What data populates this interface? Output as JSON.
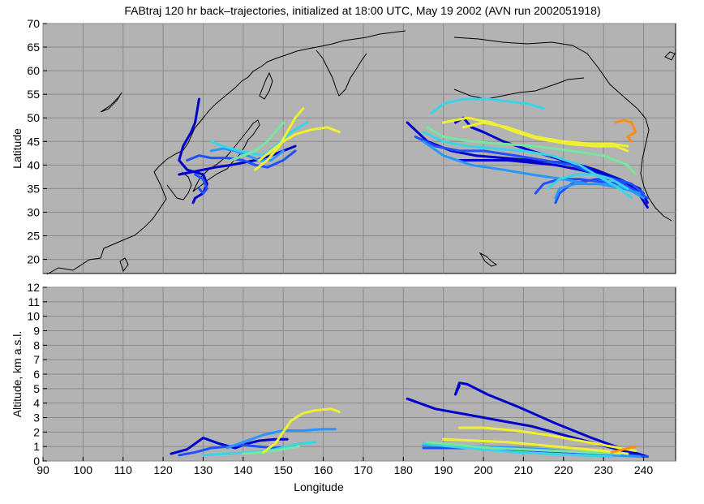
{
  "chart_data": [
    {
      "type": "line",
      "panel": "map",
      "title": "FABtraj 120 hr back–trajectories, initialized at 18:00 UTC, May 19 2002 (AVN run 2002051918)",
      "xlabel": "",
      "ylabel": "Latitude",
      "xlim": [
        90,
        248
      ],
      "ylim": [
        17,
        70
      ],
      "xticks": [],
      "yticks": [
        20,
        25,
        30,
        35,
        40,
        45,
        50,
        55,
        60,
        65,
        70
      ],
      "grid": true,
      "series": [
        {
          "color": "#0000cc",
          "x": [
            129,
            128,
            127,
            125,
            124,
            126,
            128,
            130,
            131,
            130,
            128,
            127.5
          ],
          "y": [
            54,
            49,
            47,
            44,
            41,
            39,
            38.5,
            38,
            36,
            34,
            33,
            32
          ]
        },
        {
          "color": "#0000cc",
          "x": [
            124,
            127,
            130,
            133,
            137,
            140,
            143,
            147,
            150,
            153
          ],
          "y": [
            38,
            38.5,
            39,
            39.5,
            40,
            40.5,
            41,
            42,
            43,
            44
          ]
        },
        {
          "color": "#0000cc",
          "x": [
            181,
            186,
            192,
            198,
            205,
            212,
            220,
            227,
            233,
            238,
            241
          ],
          "y": [
            49,
            45,
            43,
            42,
            41.5,
            41,
            40.5,
            39,
            37,
            35,
            31
          ]
        },
        {
          "color": "#0000cc",
          "x": [
            193,
            195,
            197,
            200,
            205,
            212,
            220,
            228,
            234,
            239,
            241
          ],
          "y": [
            49,
            50,
            48,
            47,
            45,
            43,
            41,
            39,
            37,
            35,
            32
          ]
        },
        {
          "color": "#0000cc",
          "x": [
            194,
            200,
            206,
            212,
            218,
            224,
            229,
            234,
            238,
            240
          ],
          "y": [
            41,
            41,
            41,
            40.5,
            40,
            39,
            38,
            37,
            35,
            33
          ]
        },
        {
          "color": "#1e50ff",
          "x": [
            126,
            129,
            132,
            136,
            140,
            143,
            146,
            150,
            153
          ],
          "y": [
            41,
            42,
            41.5,
            41.5,
            41,
            40,
            39.5,
            41,
            43
          ]
        },
        {
          "color": "#1e50ff",
          "x": [
            128,
            130,
            131,
            130,
            129
          ],
          "y": [
            38,
            37,
            35,
            34,
            35
          ]
        },
        {
          "color": "#1e50ff",
          "x": [
            183,
            188,
            194,
            200,
            208,
            215,
            222,
            228,
            233,
            237,
            241
          ],
          "y": [
            46,
            44,
            43,
            43,
            42,
            41,
            40,
            38,
            37,
            35,
            33
          ]
        },
        {
          "color": "#1e50ff",
          "x": [
            213,
            215,
            219,
            224,
            229,
            234,
            239
          ],
          "y": [
            34,
            36,
            37,
            37,
            36.5,
            36,
            34
          ]
        },
        {
          "color": "#1e50ff",
          "x": [
            218,
            219,
            222,
            228,
            233,
            237,
            240
          ],
          "y": [
            32,
            34,
            36,
            37,
            37,
            36,
            34
          ]
        },
        {
          "color": "#2896ff",
          "x": [
            132,
            135,
            138,
            141,
            144,
            147,
            150
          ],
          "y": [
            43,
            43.5,
            43,
            42,
            41,
            41,
            43
          ]
        },
        {
          "color": "#2896ff",
          "x": [
            185,
            190,
            197,
            205,
            212,
            220,
            226,
            231,
            236,
            240
          ],
          "y": [
            45,
            42,
            40,
            39,
            38,
            37,
            36,
            36,
            35,
            33
          ]
        },
        {
          "color": "#2896ff",
          "x": [
            218,
            219,
            223,
            229,
            235,
            239
          ],
          "y": [
            33,
            35,
            36,
            36,
            35,
            34
          ]
        },
        {
          "color": "#38d4e8",
          "x": [
            132,
            135,
            139,
            142,
            145,
            148,
            152,
            156
          ],
          "y": [
            45,
            44,
            43,
            42.5,
            42,
            44,
            47,
            49
          ]
        },
        {
          "color": "#38d4e8",
          "x": [
            187,
            190,
            195,
            201,
            206,
            211,
            215
          ],
          "y": [
            51,
            53,
            54,
            54,
            53.5,
            53,
            52
          ]
        },
        {
          "color": "#38d4e8",
          "x": [
            185,
            190,
            196,
            203,
            210,
            217,
            224,
            230,
            234,
            237
          ],
          "y": [
            47,
            45,
            44,
            43.5,
            43,
            42,
            40,
            37,
            35,
            33
          ]
        },
        {
          "color": "#38d4e8",
          "x": [
            216,
            219,
            223,
            228,
            232,
            236
          ],
          "y": [
            35,
            37,
            38,
            38,
            37,
            35
          ]
        },
        {
          "color": "#78e6a0",
          "x": [
            137,
            140,
            143,
            146,
            148,
            150
          ],
          "y": [
            41,
            42,
            43,
            45,
            47,
            49
          ]
        },
        {
          "color": "#78e6a0",
          "x": [
            186,
            190,
            197,
            205,
            213,
            222,
            230,
            236,
            238
          ],
          "y": [
            48,
            46,
            45,
            44.5,
            44,
            43,
            42,
            40,
            38
          ]
        },
        {
          "color": "#f0f032",
          "x": [
            144,
            147,
            150,
            153,
            157,
            161,
            164
          ],
          "y": [
            41,
            43,
            45,
            46.5,
            47.5,
            48,
            47
          ]
        },
        {
          "color": "#f0f032",
          "x": [
            143,
            146,
            149,
            151,
            153,
            155
          ],
          "y": [
            39,
            41,
            44,
            47,
            50,
            52
          ]
        },
        {
          "color": "#f0f032",
          "x": [
            190,
            196,
            202,
            208,
            214,
            221,
            228,
            233,
            236
          ],
          "y": [
            49,
            50,
            49,
            47,
            45.5,
            44.5,
            44,
            44,
            43
          ]
        },
        {
          "color": "#f0f032",
          "x": [
            195,
            200,
            206,
            213,
            220,
            227,
            232,
            236
          ],
          "y": [
            48,
            49,
            48,
            46,
            45,
            44.5,
            44.5,
            44
          ]
        },
        {
          "color": "#ff8c14",
          "x": [
            233,
            235,
            237,
            238,
            236,
            237
          ],
          "y": [
            49,
            49.5,
            49,
            47,
            46,
            45
          ]
        }
      ]
    },
    {
      "type": "line",
      "panel": "altitude",
      "title": "",
      "xlabel": "Longitude",
      "ylabel": "Altitude, km a.s.l.",
      "xlim": [
        90,
        248
      ],
      "ylim": [
        0,
        12
      ],
      "xticks": [
        90,
        100,
        110,
        120,
        130,
        140,
        150,
        160,
        170,
        180,
        190,
        200,
        210,
        220,
        230,
        240
      ],
      "yticks": [
        0,
        1,
        2,
        3,
        4,
        5,
        6,
        7,
        8,
        9,
        10,
        11,
        12
      ],
      "grid": true,
      "series": [
        {
          "color": "#0000cc",
          "x": [
            122,
            126,
            130,
            134,
            138,
            141,
            144,
            148,
            151
          ],
          "y": [
            0.5,
            0.8,
            1.6,
            1.2,
            0.9,
            1.2,
            1.4,
            1.5,
            1.5
          ]
        },
        {
          "color": "#0000cc",
          "x": [
            181,
            188,
            196,
            204,
            212,
            220,
            228,
            235,
            240
          ],
          "y": [
            4.3,
            3.6,
            3.2,
            2.8,
            2.4,
            1.8,
            1.2,
            0.7,
            0.3
          ]
        },
        {
          "color": "#0000cc",
          "x": [
            194,
            193,
            194,
            196,
            201,
            209,
            218,
            227,
            235,
            241
          ],
          "y": [
            5.2,
            4.6,
            5.4,
            5.3,
            4.6,
            3.7,
            2.6,
            1.6,
            0.8,
            0.3
          ]
        },
        {
          "color": "#1e50ff",
          "x": [
            124,
            128,
            132,
            136,
            140,
            144,
            148,
            153
          ],
          "y": [
            0.4,
            0.6,
            0.9,
            1.0,
            1.1,
            1.0,
            0.9,
            1.0
          ]
        },
        {
          "color": "#1e50ff",
          "x": [
            185,
            192,
            199,
            206,
            214,
            222,
            230,
            237,
            241
          ],
          "y": [
            0.9,
            0.9,
            0.9,
            0.8,
            0.7,
            0.6,
            0.5,
            0.4,
            0.3
          ]
        },
        {
          "color": "#2896ff",
          "x": [
            136,
            140,
            145,
            150,
            155,
            160,
            163
          ],
          "y": [
            0.9,
            1.3,
            1.8,
            2.1,
            2.1,
            2.2,
            2.2
          ]
        },
        {
          "color": "#2896ff",
          "x": [
            185,
            192,
            200,
            208,
            216,
            224,
            232,
            239
          ],
          "y": [
            1.1,
            1.1,
            1.0,
            0.9,
            0.8,
            0.6,
            0.4,
            0.3
          ]
        },
        {
          "color": "#38d4e8",
          "x": [
            130,
            136,
            142,
            148,
            154,
            158
          ],
          "y": [
            0.4,
            0.5,
            0.6,
            0.8,
            1.2,
            1.3
          ]
        },
        {
          "color": "#38d4e8",
          "x": [
            185,
            192,
            200,
            208,
            216,
            224,
            232
          ],
          "y": [
            1.2,
            1.0,
            0.8,
            0.6,
            0.5,
            0.4,
            0.3
          ]
        },
        {
          "color": "#78e6a0",
          "x": [
            140,
            145,
            150,
            154
          ],
          "y": [
            0.5,
            0.6,
            0.8,
            1.0
          ]
        },
        {
          "color": "#78e6a0",
          "x": [
            186,
            194,
            202,
            210,
            218,
            226,
            234
          ],
          "y": [
            1.3,
            1.1,
            0.9,
            0.8,
            0.7,
            0.6,
            0.5
          ]
        },
        {
          "color": "#f0f032",
          "x": [
            145,
            148,
            150,
            152,
            155,
            158,
            162,
            164
          ],
          "y": [
            0.6,
            1.2,
            2.0,
            2.8,
            3.3,
            3.5,
            3.6,
            3.4
          ]
        },
        {
          "color": "#f0f032",
          "x": [
            194,
            200,
            208,
            216,
            224,
            232,
            238
          ],
          "y": [
            2.3,
            2.3,
            2.1,
            1.8,
            1.4,
            1.0,
            0.7
          ]
        },
        {
          "color": "#f0f032",
          "x": [
            190,
            198,
            206,
            214,
            222,
            230,
            236
          ],
          "y": [
            1.5,
            1.4,
            1.3,
            1.1,
            0.9,
            0.7,
            0.5
          ]
        },
        {
          "color": "#ff8c14",
          "x": [
            232,
            235,
            238
          ],
          "y": [
            0.6,
            0.8,
            1.0
          ]
        }
      ]
    }
  ]
}
